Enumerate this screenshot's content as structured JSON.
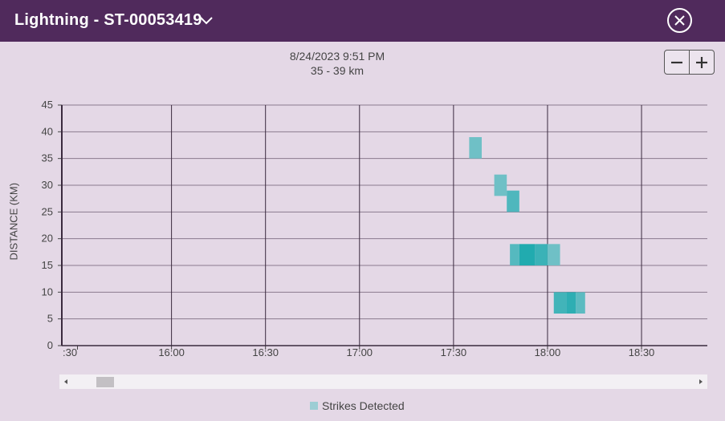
{
  "window": {
    "title": "Lightning - ST-00053419"
  },
  "header": {
    "date": "8/24/2023 9:51 PM",
    "range": "35 - 39 km"
  },
  "icons": {
    "dropdown": "chevron-down-icon",
    "close": "close-circle-icon",
    "zoom_out": "minus-icon",
    "zoom_in": "plus-icon"
  },
  "colors": {
    "titlebar": "#502a5c",
    "background": "#e4d8e6",
    "strike_light": "#9ccdd4",
    "strike_dark": "#1ba9ad"
  },
  "chart_data": {
    "type": "heatmap",
    "title": "",
    "xlabel": "",
    "ylabel": "DISTANCE (KM)",
    "y_ticks": [
      0,
      5,
      10,
      15,
      20,
      25,
      30,
      35,
      40,
      45
    ],
    "ylim": [
      0,
      45
    ],
    "x_ticks": [
      ":30",
      "16:00",
      "16:30",
      "17:00",
      "17:30",
      "18:00",
      "18:30"
    ],
    "xlim": [
      "15:25",
      "18:51"
    ],
    "grid": true,
    "legend": {
      "position": "bottom",
      "entries": [
        "Strikes Detected"
      ]
    },
    "series": [
      {
        "name": "Strikes Detected",
        "cells": [
          {
            "start": "17:35",
            "end": "17:39",
            "dist_from": 35,
            "dist_to": 39,
            "intensity": 0.35
          },
          {
            "start": "17:43",
            "end": "17:47",
            "dist_from": 28,
            "dist_to": 32,
            "intensity": 0.35
          },
          {
            "start": "17:47",
            "end": "17:51",
            "dist_from": 25,
            "dist_to": 29,
            "intensity": 0.6
          },
          {
            "start": "17:48",
            "end": "17:51",
            "dist_from": 15,
            "dist_to": 19,
            "intensity": 0.55
          },
          {
            "start": "17:51",
            "end": "17:56",
            "dist_from": 15,
            "dist_to": 19,
            "intensity": 0.95
          },
          {
            "start": "17:56",
            "end": "18:00",
            "dist_from": 15,
            "dist_to": 19,
            "intensity": 0.75
          },
          {
            "start": "18:00",
            "end": "18:04",
            "dist_from": 15,
            "dist_to": 19,
            "intensity": 0.35
          },
          {
            "start": "18:02",
            "end": "18:06",
            "dist_from": 6,
            "dist_to": 10,
            "intensity": 0.7
          },
          {
            "start": "18:06",
            "end": "18:09",
            "dist_from": 6,
            "dist_to": 10,
            "intensity": 0.85
          },
          {
            "start": "18:09",
            "end": "18:12",
            "dist_from": 6,
            "dist_to": 10,
            "intensity": 0.5
          }
        ]
      }
    ]
  }
}
